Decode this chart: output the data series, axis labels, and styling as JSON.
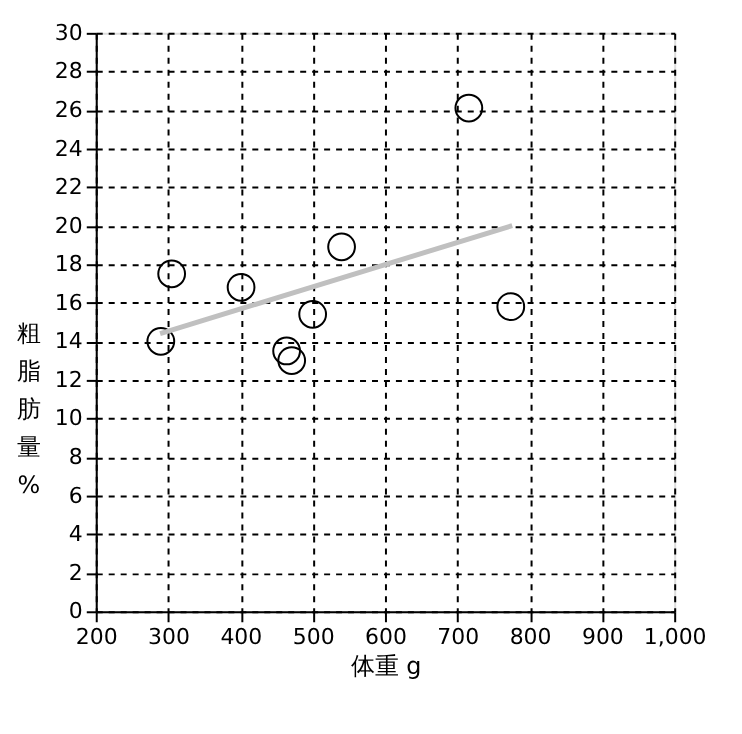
{
  "chart_data": {
    "type": "scatter",
    "xlabel": "体重 g",
    "ylabel": "粗脂肪量%",
    "series": [
      {
        "color": "#000000",
        "marker": "circle",
        "x": [
          290,
          305,
          401,
          464,
          471,
          500,
          540,
          716,
          774
        ],
        "values": [
          14.0,
          17.5,
          16.8,
          13.5,
          13.0,
          15.4,
          18.9,
          26.1,
          15.8
        ]
      },
      {
        "type": "line",
        "color": "#c0c0c0",
        "marker": "none",
        "x": [
          289,
          776
        ],
        "values": [
          14.4,
          20.0
        ]
      }
    ],
    "xlim": [
      200,
      1000
    ],
    "xticks": [
      200,
      300,
      400,
      500,
      600,
      700,
      800,
      900,
      {
        "value": 1000,
        "label": "1,000"
      }
    ],
    "ylim": [
      0,
      30
    ],
    "yticks": [
      0,
      2,
      4,
      6,
      8,
      10,
      12,
      14,
      16,
      18,
      20,
      22,
      24,
      26,
      28,
      30
    ],
    "grid": true
  }
}
